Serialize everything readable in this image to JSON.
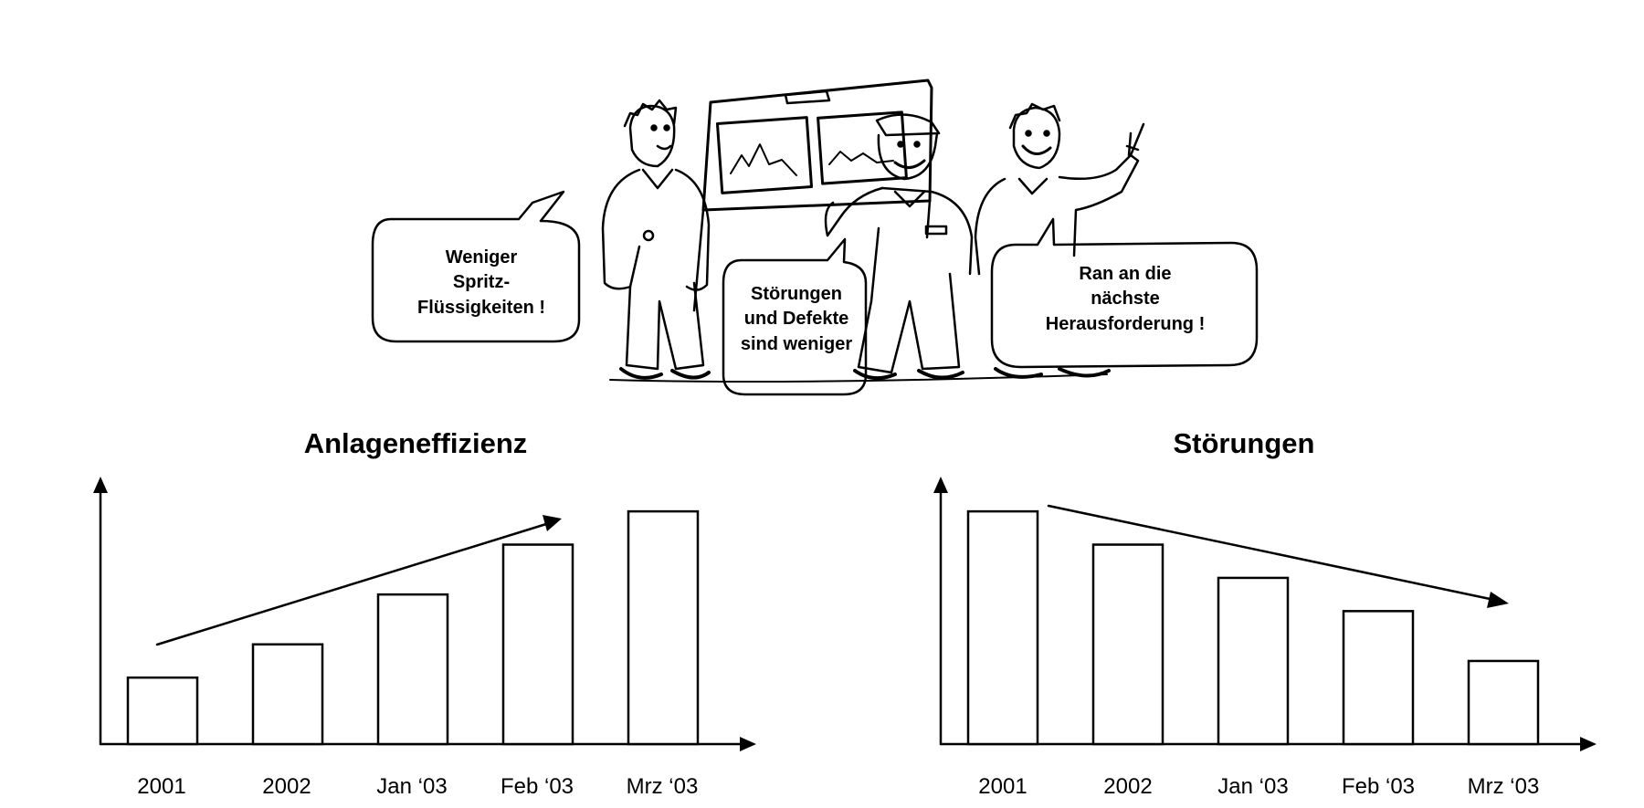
{
  "illustration": {
    "bubbles": [
      {
        "id": "left",
        "lines": [
          "Weniger",
          "Spritz-",
          "Flüssigkeiten !"
        ]
      },
      {
        "id": "middle",
        "lines": [
          "Störungen",
          "und Defekte",
          "sind weniger"
        ]
      },
      {
        "id": "right",
        "lines": [
          "Ran an die",
          "nächste",
          "Herausforderung !"
        ]
      }
    ]
  },
  "chart_data": [
    {
      "type": "bar",
      "title": "Anlageneffizienz",
      "categories": [
        "2001",
        "2002",
        "Jan ‘03",
        "Feb ‘03",
        "Mrz ‘03"
      ],
      "values": [
        1.0,
        1.5,
        2.25,
        3.0,
        3.5
      ],
      "trend": "up",
      "xlabel": "",
      "ylabel": "",
      "ylim": [
        0,
        4.6
      ],
      "grid": false,
      "legend": "none"
    },
    {
      "type": "bar",
      "title": "Störungen",
      "categories": [
        "2001",
        "2002",
        "Jan ‘03",
        "Feb ‘03",
        "Mrz ‘03"
      ],
      "values": [
        3.5,
        3.0,
        2.5,
        2.0,
        1.25
      ],
      "trend": "down",
      "xlabel": "",
      "ylabel": "",
      "ylim": [
        0,
        4.6
      ],
      "grid": false,
      "legend": "none"
    }
  ]
}
